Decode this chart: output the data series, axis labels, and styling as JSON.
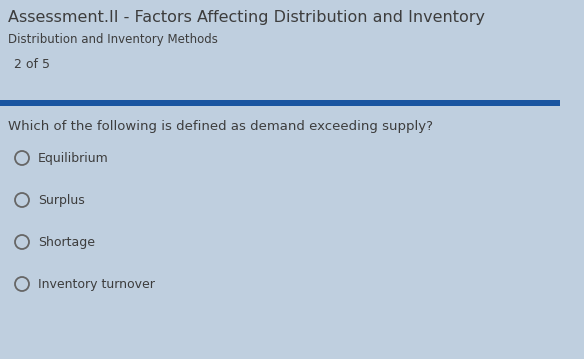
{
  "title": "Assessment.II - Factors Affecting Distribution and Inventory",
  "subtitle": "Distribution and Inventory Methods",
  "progress": "2 of 5",
  "question": "Which of the following is defined as demand exceeding supply?",
  "options": [
    "Equilibrium",
    "Surplus",
    "Shortage",
    "Inventory turnover"
  ],
  "bg_color": "#bfcfdf",
  "title_color": "#3d3d3d",
  "subtitle_color": "#3d3d3d",
  "progress_color": "#3d3d3d",
  "question_color": "#3d3d3d",
  "option_color": "#3d3d3d",
  "bar_color": "#1a55a0",
  "title_fontsize": 11.5,
  "subtitle_fontsize": 8.5,
  "progress_fontsize": 9,
  "question_fontsize": 9.5,
  "option_fontsize": 9,
  "circle_color": "#666666"
}
